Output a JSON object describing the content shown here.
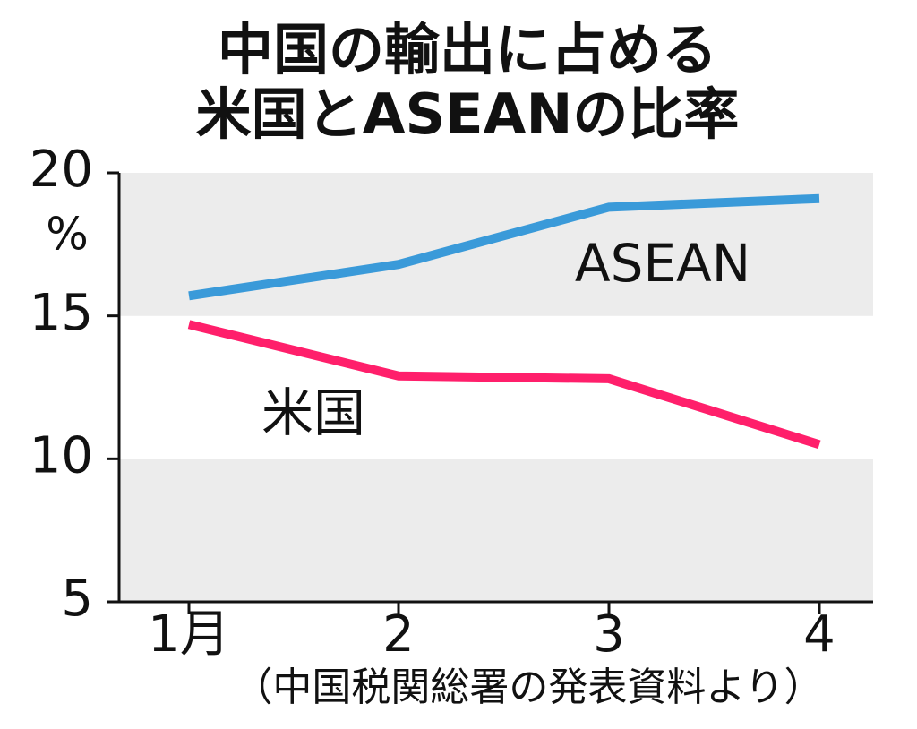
{
  "chart_data": {
    "type": "line",
    "title": [
      "中国の輸出に占める",
      "米国とASEANの比率"
    ],
    "unit": "%",
    "categories": [
      "1月",
      "2",
      "3",
      "4"
    ],
    "series": [
      {
        "name": "ASEAN",
        "color": "#3a9ad9",
        "values": [
          15.7,
          16.8,
          18.8,
          19.1
        ]
      },
      {
        "name": "米国",
        "color": "#ff1f6b",
        "values": [
          14.7,
          12.9,
          12.8,
          10.5
        ]
      }
    ],
    "ylim": [
      5,
      20
    ],
    "yticks": [
      5,
      10,
      15,
      20
    ],
    "source": "（中国税関総署の発表資料より）"
  }
}
